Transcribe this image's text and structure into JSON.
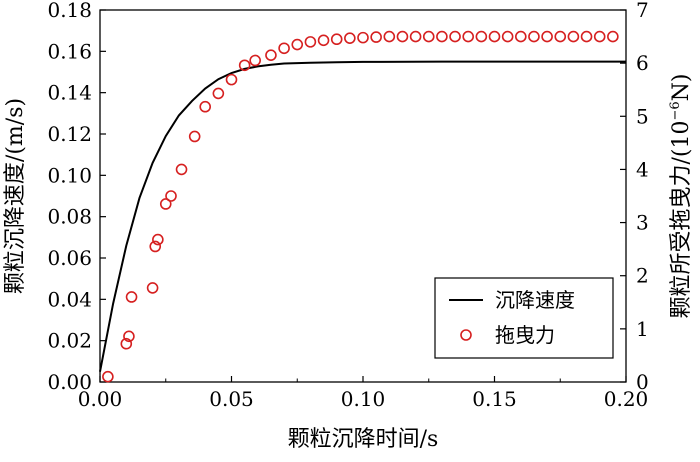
{
  "chart_data": {
    "type": "line+scatter",
    "xlabel": "颗粒沉降时间/s",
    "ylabel_left": "颗粒沉降速度/(m/s)",
    "ylabel_right_main": "颗粒所受拖曳力/(10",
    "ylabel_right_exp": "−6",
    "ylabel_right_tail": "N)",
    "xlim": [
      0,
      0.2
    ],
    "ylim_left": [
      0,
      0.18
    ],
    "ylim_right": [
      0,
      7
    ],
    "x_ticks": [
      "0.00",
      "0.05",
      "0.10",
      "0.15",
      "0.20"
    ],
    "y_left_ticks": [
      "0.00",
      "0.02",
      "0.04",
      "0.06",
      "0.08",
      "0.10",
      "0.12",
      "0.14",
      "0.16",
      "0.18"
    ],
    "y_right_ticks": [
      "0",
      "1",
      "2",
      "3",
      "4",
      "5",
      "6",
      "7"
    ],
    "legend_position": "lower-right",
    "grid": false,
    "series": [
      {
        "name": "沉降速度",
        "kind": "line",
        "axis": "left",
        "color": "#000000",
        "x": [
          0,
          0.005,
          0.01,
          0.015,
          0.02,
          0.025,
          0.03,
          0.035,
          0.04,
          0.045,
          0.05,
          0.055,
          0.06,
          0.065,
          0.07,
          0.08,
          0.09,
          0.1,
          0.13,
          0.15,
          0.2
        ],
        "y": [
          0.005,
          0.038,
          0.066,
          0.089,
          0.106,
          0.119,
          0.129,
          0.136,
          0.142,
          0.1465,
          0.1495,
          0.1515,
          0.1527,
          0.1535,
          0.1541,
          0.1545,
          0.1547,
          0.1549,
          0.155,
          0.155,
          0.155
        ]
      },
      {
        "name": "拖曳力",
        "kind": "scatter",
        "axis": "right",
        "color": "#d62020",
        "x": [
          0.003,
          0.01,
          0.011,
          0.012,
          0.02,
          0.021,
          0.022,
          0.025,
          0.027,
          0.031,
          0.036,
          0.04,
          0.045,
          0.05,
          0.055,
          0.059,
          0.065,
          0.07,
          0.075,
          0.08,
          0.085,
          0.09,
          0.095,
          0.1,
          0.105,
          0.11,
          0.115,
          0.12,
          0.125,
          0.13,
          0.135,
          0.14,
          0.145,
          0.15,
          0.155,
          0.16,
          0.165,
          0.17,
          0.175,
          0.18,
          0.185,
          0.19,
          0.195
        ],
        "y": [
          0.1,
          0.72,
          0.86,
          1.6,
          1.77,
          2.55,
          2.68,
          3.35,
          3.5,
          4.0,
          4.62,
          5.18,
          5.43,
          5.69,
          5.96,
          6.05,
          6.15,
          6.28,
          6.35,
          6.4,
          6.43,
          6.45,
          6.47,
          6.48,
          6.49,
          6.5,
          6.5,
          6.5,
          6.5,
          6.5,
          6.5,
          6.5,
          6.5,
          6.5,
          6.5,
          6.5,
          6.5,
          6.5,
          6.5,
          6.5,
          6.5,
          6.5,
          6.5
        ]
      }
    ]
  }
}
